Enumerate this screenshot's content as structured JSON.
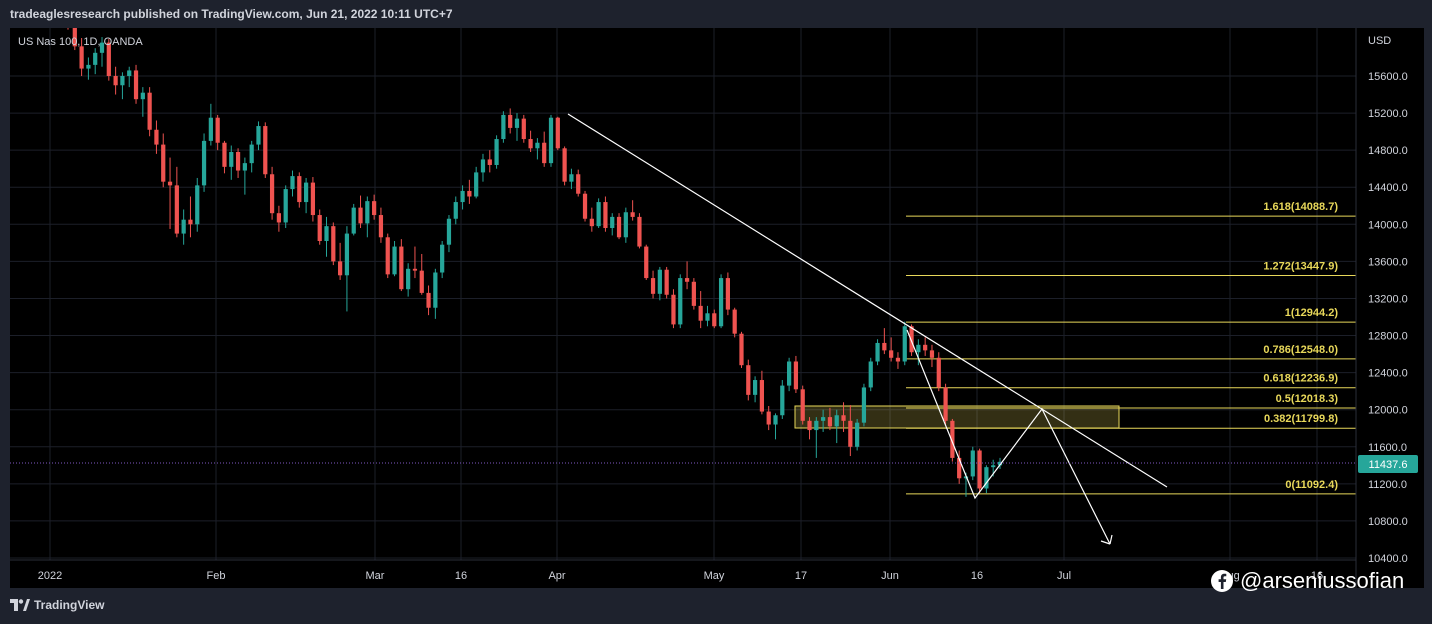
{
  "header": {
    "text": "tradeaglesresearch published on TradingView.com, Jun 21, 2022 10:11 UTC+7"
  },
  "footer": {
    "logo_text": "TradingView",
    "watermark": "@arseniussofian"
  },
  "colors": {
    "up": "#26a69a",
    "down": "#ef5350",
    "grid": "#1c1f29",
    "fib": "#e8d85a",
    "axis_text": "#d1d4dc",
    "price_line": "#7e57c2",
    "price_badge": "#26a69a",
    "drawing": "#ffffff"
  },
  "chart_data": {
    "type": "candlestick",
    "symbol_label": "US Nas 100, 1D, OANDA",
    "currency": "USD",
    "last_price": "11437.6",
    "y_ticks": [
      "15600.0",
      "15200.0",
      "14800.0",
      "14400.0",
      "14000.0",
      "13600.0",
      "13200.0",
      "12800.0",
      "12400.0",
      "12000.0",
      "11600.0",
      "11200.0",
      "10800.0",
      "10400.0"
    ],
    "x_ticks": [
      "2022",
      "Feb",
      "Mar",
      "16",
      "Apr",
      "May",
      "17",
      "Jun",
      "16",
      "Jul",
      "Aug",
      "16"
    ],
    "fib_levels": [
      {
        "ratio": "1.618",
        "price": 14088.7,
        "label": "1.618(14088.7)"
      },
      {
        "ratio": "1.272",
        "price": 13447.9,
        "label": "1.272(13447.9)"
      },
      {
        "ratio": "1",
        "price": 12944.2,
        "label": "1(12944.2)"
      },
      {
        "ratio": "0.786",
        "price": 12548.0,
        "label": "0.786(12548.0)"
      },
      {
        "ratio": "0.618",
        "price": 12236.9,
        "label": "0.618(12236.9)"
      },
      {
        "ratio": "0.5",
        "price": 12018.3,
        "label": "0.5(12018.3)"
      },
      {
        "ratio": "0.382",
        "price": 11799.8,
        "label": "0.382(11799.8)"
      },
      {
        "ratio": "0",
        "price": 11092.4,
        "label": "0(11092.4)"
      }
    ],
    "candles": [
      [
        16500,
        16580,
        16100,
        16200
      ],
      [
        16200,
        16260,
        15880,
        15920
      ],
      [
        15920,
        16010,
        15600,
        15680
      ],
      [
        15680,
        15800,
        15560,
        15720
      ],
      [
        15720,
        15900,
        15620,
        15850
      ],
      [
        15850,
        16020,
        15700,
        15960
      ],
      [
        15960,
        16000,
        15550,
        15600
      ],
      [
        15600,
        15700,
        15400,
        15500
      ],
      [
        15500,
        15640,
        15350,
        15600
      ],
      [
        15600,
        15700,
        15480,
        15660
      ],
      [
        15660,
        15720,
        15300,
        15350
      ],
      [
        15350,
        15480,
        15160,
        15420
      ],
      [
        15420,
        15480,
        14950,
        15020
      ],
      [
        15020,
        15120,
        14760,
        14860
      ],
      [
        14860,
        14980,
        14400,
        14460
      ],
      [
        14460,
        14720,
        13950,
        14420
      ],
      [
        14420,
        14620,
        13860,
        13900
      ],
      [
        13900,
        14160,
        13780,
        14050
      ],
      [
        14050,
        14300,
        13860,
        14000
      ],
      [
        14000,
        14500,
        13920,
        14420
      ],
      [
        14420,
        14980,
        14350,
        14900
      ],
      [
        14900,
        15300,
        14850,
        15150
      ],
      [
        15150,
        15180,
        14800,
        14880
      ],
      [
        14880,
        14900,
        14550,
        14620
      ],
      [
        14620,
        14850,
        14480,
        14780
      ],
      [
        14780,
        14820,
        14500,
        14580
      ],
      [
        14580,
        14720,
        14320,
        14660
      ],
      [
        14660,
        14900,
        14560,
        14860
      ],
      [
        14860,
        15110,
        14800,
        15060
      ],
      [
        15060,
        15100,
        14500,
        14540
      ],
      [
        14540,
        14620,
        14050,
        14120
      ],
      [
        14120,
        14200,
        13920,
        14020
      ],
      [
        14020,
        14420,
        13960,
        14380
      ],
      [
        14380,
        14580,
        14300,
        14520
      ],
      [
        14520,
        14560,
        14180,
        14240
      ],
      [
        14240,
        14500,
        14120,
        14450
      ],
      [
        14450,
        14510,
        14030,
        14100
      ],
      [
        14100,
        14160,
        13780,
        13820
      ],
      [
        13820,
        14080,
        13650,
        13980
      ],
      [
        13980,
        14020,
        13560,
        13600
      ],
      [
        13600,
        13800,
        13400,
        13450
      ],
      [
        13450,
        13980,
        13060,
        13900
      ],
      [
        13900,
        14220,
        13880,
        14180
      ],
      [
        14180,
        14310,
        13960,
        14010
      ],
      [
        14010,
        14300,
        13860,
        14250
      ],
      [
        14250,
        14320,
        14050,
        14100
      ],
      [
        14100,
        14180,
        13800,
        13860
      ],
      [
        13860,
        13900,
        13420,
        13460
      ],
      [
        13460,
        13820,
        13440,
        13760
      ],
      [
        13760,
        13840,
        13280,
        13300
      ],
      [
        13300,
        13580,
        13220,
        13520
      ],
      [
        13520,
        13760,
        13420,
        13500
      ],
      [
        13500,
        13680,
        13240,
        13260
      ],
      [
        13260,
        13340,
        13020,
        13100
      ],
      [
        13100,
        13520,
        12980,
        13480
      ],
      [
        13480,
        13820,
        13420,
        13780
      ],
      [
        13780,
        14100,
        13700,
        14060
      ],
      [
        14060,
        14300,
        14000,
        14240
      ],
      [
        14240,
        14420,
        14160,
        14360
      ],
      [
        14360,
        14480,
        14220,
        14300
      ],
      [
        14300,
        14620,
        14280,
        14560
      ],
      [
        14560,
        14760,
        14460,
        14700
      ],
      [
        14700,
        14800,
        14560,
        14640
      ],
      [
        14640,
        14960,
        14600,
        14920
      ],
      [
        14920,
        15220,
        14880,
        15180
      ],
      [
        15180,
        15250,
        14980,
        15040
      ],
      [
        15040,
        15200,
        14900,
        15140
      ],
      [
        15140,
        15180,
        14880,
        14920
      ],
      [
        14920,
        15010,
        14780,
        14820
      ],
      [
        14820,
        14930,
        14700,
        14880
      ],
      [
        14880,
        15000,
        14620,
        14660
      ],
      [
        14660,
        15180,
        14620,
        15150
      ],
      [
        15150,
        15160,
        14800,
        14820
      ],
      [
        14820,
        14840,
        14420,
        14460
      ],
      [
        14460,
        14600,
        14380,
        14540
      ],
      [
        14540,
        14590,
        14300,
        14330
      ],
      [
        14330,
        14360,
        14030,
        14060
      ],
      [
        14060,
        14180,
        13920,
        13980
      ],
      [
        13980,
        14280,
        13960,
        14240
      ],
      [
        14240,
        14300,
        13920,
        13960
      ],
      [
        13960,
        14120,
        13880,
        14080
      ],
      [
        14080,
        14120,
        13840,
        13860
      ],
      [
        13860,
        14180,
        13800,
        14130
      ],
      [
        14130,
        14260,
        14040,
        14080
      ],
      [
        14080,
        14120,
        13740,
        13760
      ],
      [
        13760,
        13780,
        13400,
        13420
      ],
      [
        13420,
        13500,
        13200,
        13250
      ],
      [
        13250,
        13540,
        13180,
        13510
      ],
      [
        13510,
        13540,
        13200,
        13240
      ],
      [
        13240,
        13300,
        12880,
        12920
      ],
      [
        12920,
        13460,
        12880,
        13420
      ],
      [
        13420,
        13600,
        13300,
        13380
      ],
      [
        13380,
        13420,
        13080,
        13120
      ],
      [
        13120,
        13280,
        12880,
        12960
      ],
      [
        12960,
        13120,
        12900,
        13040
      ],
      [
        13040,
        13080,
        12880,
        12900
      ],
      [
        12900,
        13460,
        12880,
        13420
      ],
      [
        13420,
        13480,
        13020,
        13080
      ],
      [
        13080,
        13100,
        12780,
        12820
      ],
      [
        12820,
        12840,
        12450,
        12480
      ],
      [
        12480,
        12540,
        12100,
        12160
      ],
      [
        12160,
        12360,
        12080,
        12320
      ],
      [
        12320,
        12420,
        11950,
        11980
      ],
      [
        11980,
        12040,
        11780,
        11840
      ],
      [
        11840,
        11960,
        11680,
        11940
      ],
      [
        11940,
        12320,
        11900,
        12260
      ],
      [
        12260,
        12560,
        12200,
        12520
      ],
      [
        12520,
        12580,
        12180,
        12220
      ],
      [
        12220,
        12260,
        11840,
        11880
      ],
      [
        11880,
        11920,
        11680,
        11780
      ],
      [
        11780,
        11920,
        11480,
        11880
      ],
      [
        11880,
        12000,
        11760,
        11920
      ],
      [
        11920,
        12020,
        11780,
        11820
      ],
      [
        11820,
        12000,
        11640,
        11940
      ],
      [
        11940,
        12080,
        11760,
        11880
      ],
      [
        11880,
        12050,
        11500,
        11600
      ],
      [
        11600,
        11900,
        11560,
        11860
      ],
      [
        11860,
        12280,
        11820,
        12240
      ],
      [
        12240,
        12560,
        12200,
        12520
      ],
      [
        12520,
        12760,
        12480,
        12720
      ],
      [
        12720,
        12880,
        12600,
        12640
      ],
      [
        12640,
        12780,
        12520,
        12560
      ],
      [
        12560,
        12620,
        12440,
        12520
      ],
      [
        12520,
        12950,
        12480,
        12900
      ],
      [
        12900,
        12920,
        12580,
        12620
      ],
      [
        12620,
        12760,
        12480,
        12700
      ],
      [
        12700,
        12780,
        12580,
        12640
      ],
      [
        12640,
        12700,
        12460,
        12560
      ],
      [
        12560,
        12620,
        12200,
        12240
      ],
      [
        12240,
        12280,
        11840,
        11880
      ],
      [
        11880,
        11900,
        11440,
        11480
      ],
      [
        11480,
        11560,
        11200,
        11260
      ],
      [
        11260,
        11320,
        11060,
        11280
      ],
      [
        11280,
        11600,
        11240,
        11560
      ],
      [
        11560,
        11580,
        11100,
        11150
      ],
      [
        11150,
        11400,
        11100,
        11380
      ],
      [
        11380,
        11460,
        11280,
        11400
      ],
      [
        11400,
        11480,
        11360,
        11437.6
      ]
    ]
  }
}
